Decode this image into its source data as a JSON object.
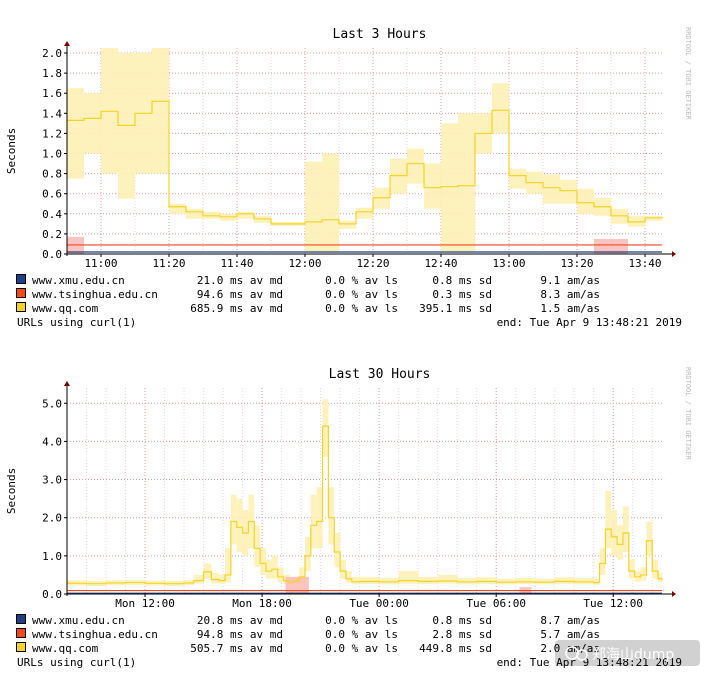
{
  "side_label": "RRDTOOL / TOBI OETIKER",
  "watermark": "郑海山dump",
  "colors": {
    "xmu": "#1f3e86",
    "tsinghua": "#f04a1a",
    "qq": "#f5d328"
  },
  "chart_data": [
    {
      "type": "line",
      "title": "Last 3 Hours",
      "ylabel": "Seconds",
      "ylim": [
        0,
        2.05
      ],
      "xlim_minutes": [
        650,
        825
      ],
      "x_ticks": [
        {
          "label": "11:00",
          "m": 660
        },
        {
          "label": "11:20",
          "m": 680
        },
        {
          "label": "11:40",
          "m": 700
        },
        {
          "label": "12:00",
          "m": 720
        },
        {
          "label": "12:20",
          "m": 740
        },
        {
          "label": "12:40",
          "m": 760
        },
        {
          "label": "13:00",
          "m": 780
        },
        {
          "label": "13:20",
          "m": 800
        },
        {
          "label": "13:40",
          "m": 820
        }
      ],
      "y_ticks": [
        "0.0",
        "0.2",
        "0.4",
        "0.6",
        "0.8",
        "1.0",
        "1.2",
        "1.4",
        "1.6",
        "1.8",
        "2.0"
      ],
      "grid": true,
      "series": [
        {
          "name": "www.xmu.edu.cn",
          "color": "#1f3e86",
          "x": [
            650,
            825
          ],
          "y": [
            0.02,
            0.02
          ]
        },
        {
          "name": "www.tsinghua.edu.cn",
          "color": "#f04a1a",
          "x": [
            650,
            825
          ],
          "y": [
            0.09,
            0.09
          ]
        },
        {
          "name": "www.qq.com",
          "color": "#f5d328",
          "x": [
            650,
            655,
            660,
            665,
            670,
            675,
            680,
            685,
            690,
            695,
            700,
            705,
            710,
            715,
            720,
            725,
            730,
            735,
            740,
            745,
            750,
            755,
            760,
            765,
            770,
            775,
            780,
            785,
            790,
            795,
            800,
            805,
            810,
            815,
            820,
            825
          ],
          "y": [
            1.33,
            1.35,
            1.42,
            1.28,
            1.4,
            1.52,
            0.47,
            0.42,
            0.38,
            0.37,
            0.4,
            0.35,
            0.3,
            0.3,
            0.32,
            0.34,
            0.3,
            0.42,
            0.56,
            0.78,
            0.9,
            0.66,
            0.67,
            0.68,
            1.2,
            1.43,
            0.78,
            0.71,
            0.66,
            0.63,
            0.51,
            0.47,
            0.38,
            0.32,
            0.36,
            0.37
          ],
          "band_low": [
            0.75,
            1.0,
            0.8,
            0.55,
            0.8,
            0.8,
            0.4,
            0.35,
            0.35,
            0.33,
            0.35,
            0.31,
            0.28,
            0.28,
            0.02,
            0.02,
            0.25,
            0.35,
            0.45,
            0.6,
            0.7,
            0.45,
            0.02,
            0.02,
            1.0,
            1.2,
            0.65,
            0.6,
            0.5,
            0.5,
            0.4,
            0.38,
            0.3,
            0.27,
            0.33,
            0.33
          ],
          "band_high": [
            1.65,
            1.6,
            2.05,
            2.0,
            2.0,
            2.2,
            0.5,
            0.45,
            0.42,
            0.4,
            0.42,
            0.38,
            0.32,
            0.32,
            0.92,
            1.0,
            0.33,
            0.46,
            0.66,
            0.95,
            1.05,
            0.9,
            1.3,
            1.4,
            1.4,
            1.7,
            0.85,
            0.82,
            0.79,
            0.74,
            0.65,
            0.56,
            0.45,
            0.38,
            0.38,
            0.38
          ]
        }
      ],
      "tsinghua_band": {
        "color": "#f9b7b0",
        "spans": [
          [
            650,
            655,
            0.17
          ],
          [
            805,
            815,
            0.15
          ]
        ]
      },
      "legend": [
        {
          "name": "www.xmu.edu.cn",
          "av_md": "21.0 ms av md",
          "av_ls": "0.0 % av ls",
          "sd": "0.8 ms sd",
          "am_as": "9.1   am/as"
        },
        {
          "name": "www.tsinghua.edu.cn",
          "av_md": "94.6 ms av md",
          "av_ls": "0.0 % av ls",
          "sd": "0.3 ms sd",
          "am_as": "8.3   am/as"
        },
        {
          "name": "www.qq.com",
          "av_md": "685.9 ms av md",
          "av_ls": "0.0 % av ls",
          "sd": "395.1 ms sd",
          "am_as": "1.5   am/as"
        }
      ],
      "footer_left": "URLs using curl(1)",
      "footer_right": "end: Tue Apr  9 13:48:21 2019"
    },
    {
      "type": "line",
      "title": "Last 30 Hours",
      "ylabel": "Seconds",
      "ylim": [
        0,
        5.4
      ],
      "xlim_hours": [
        8,
        38.5
      ],
      "x_ticks": [
        {
          "label": "Mon 12:00",
          "h": 12
        },
        {
          "label": "Mon 18:00",
          "h": 18
        },
        {
          "label": "Tue 00:00",
          "h": 24
        },
        {
          "label": "Tue 06:00",
          "h": 30
        },
        {
          "label": "Tue 12:00",
          "h": 36
        }
      ],
      "y_ticks": [
        "0.0",
        "1.0",
        "2.0",
        "3.0",
        "4.0",
        "5.0"
      ],
      "grid": true,
      "series": [
        {
          "name": "www.xmu.edu.cn",
          "color": "#1f3e86",
          "x": [
            8,
            38.5
          ],
          "y": [
            0.02,
            0.02
          ]
        },
        {
          "name": "www.tsinghua.edu.cn",
          "color": "#f04a1a",
          "x": [
            8,
            38.5
          ],
          "y": [
            0.09,
            0.09
          ]
        },
        {
          "name": "www.qq.com",
          "color": "#f5d328",
          "x": [
            8,
            9,
            10,
            11,
            12,
            13,
            14,
            14.5,
            15,
            15.4,
            15.8,
            16.1,
            16.4,
            16.7,
            17.0,
            17.3,
            17.6,
            17.9,
            18.2,
            18.5,
            18.8,
            19.1,
            19.4,
            19.6,
            19.9,
            20.2,
            20.5,
            20.8,
            21.1,
            21.4,
            21.7,
            22.0,
            22.3,
            22.6,
            23,
            24,
            25,
            26,
            27,
            28,
            29,
            30,
            31,
            32,
            33,
            34,
            35,
            35.3,
            35.6,
            35.9,
            36.2,
            36.5,
            36.8,
            37.1,
            37.4,
            37.7,
            38.0,
            38.3,
            38.5
          ],
          "y": [
            0.28,
            0.27,
            0.29,
            0.3,
            0.28,
            0.27,
            0.29,
            0.35,
            0.58,
            0.38,
            0.35,
            0.5,
            1.9,
            1.75,
            1.6,
            1.9,
            1.2,
            0.8,
            0.6,
            0.65,
            0.45,
            0.35,
            0.3,
            0.33,
            0.45,
            1.0,
            1.8,
            1.9,
            4.4,
            2.0,
            1.1,
            0.6,
            0.4,
            0.32,
            0.33,
            0.32,
            0.35,
            0.33,
            0.34,
            0.32,
            0.33,
            0.31,
            0.32,
            0.31,
            0.33,
            0.32,
            0.3,
            0.8,
            1.7,
            1.5,
            1.3,
            1.6,
            0.6,
            0.45,
            0.5,
            1.4,
            0.6,
            0.4,
            0.35
          ],
          "band_high": [
            0.36,
            0.34,
            0.36,
            0.37,
            0.35,
            0.34,
            0.36,
            0.5,
            0.8,
            0.55,
            0.5,
            1.2,
            2.6,
            2.5,
            2.2,
            2.6,
            1.8,
            1.2,
            0.9,
            1.0,
            0.7,
            0.5,
            0.4,
            0.45,
            0.7,
            1.5,
            2.6,
            2.8,
            5.1,
            2.8,
            1.6,
            0.9,
            0.6,
            0.45,
            0.45,
            0.42,
            0.6,
            0.45,
            0.5,
            0.42,
            0.44,
            0.4,
            0.42,
            0.4,
            0.44,
            0.42,
            0.4,
            1.2,
            2.7,
            2.2,
            1.8,
            2.3,
            0.9,
            0.6,
            0.7,
            1.9,
            0.9,
            0.55,
            0.45
          ],
          "band_low": [
            0.22,
            0.21,
            0.23,
            0.24,
            0.22,
            0.21,
            0.23,
            0.27,
            0.4,
            0.28,
            0.27,
            0.3,
            1.3,
            1.1,
            1.0,
            1.2,
            0.7,
            0.5,
            0.4,
            0.4,
            0.3,
            0.26,
            0.24,
            0.26,
            0.3,
            0.6,
            1.2,
            1.2,
            3.6,
            1.3,
            0.7,
            0.4,
            0.3,
            0.25,
            0.26,
            0.25,
            0.27,
            0.26,
            0.27,
            0.25,
            0.26,
            0.25,
            0.26,
            0.25,
            0.26,
            0.25,
            0.24,
            0.5,
            1.2,
            1.0,
            0.9,
            1.1,
            0.4,
            0.32,
            0.35,
            1.0,
            0.4,
            0.3,
            0.28
          ]
        }
      ],
      "tsinghua_band": {
        "color": "#f9b7b0",
        "spans": [
          [
            19.2,
            20.4,
            0.45
          ],
          [
            31.2,
            31.8,
            0.18
          ]
        ]
      },
      "legend": [
        {
          "name": "www.xmu.edu.cn",
          "av_md": "20.8 ms av md",
          "av_ls": "0.0 % av ls",
          "sd": "0.8 ms sd",
          "am_as": "8.7   am/as"
        },
        {
          "name": "www.tsinghua.edu.cn",
          "av_md": "94.8 ms av md",
          "av_ls": "0.0 % av ls",
          "sd": "2.8 ms sd",
          "am_as": "5.7   am/as"
        },
        {
          "name": "www.qq.com",
          "av_md": "505.7 ms av md",
          "av_ls": "0.0 % av ls",
          "sd": "449.8 ms sd",
          "am_as": "2.0   am/as"
        }
      ],
      "footer_left": "URLs using curl(1)",
      "footer_right": "end: Tue Apr  9 13:48:21 2019"
    }
  ]
}
